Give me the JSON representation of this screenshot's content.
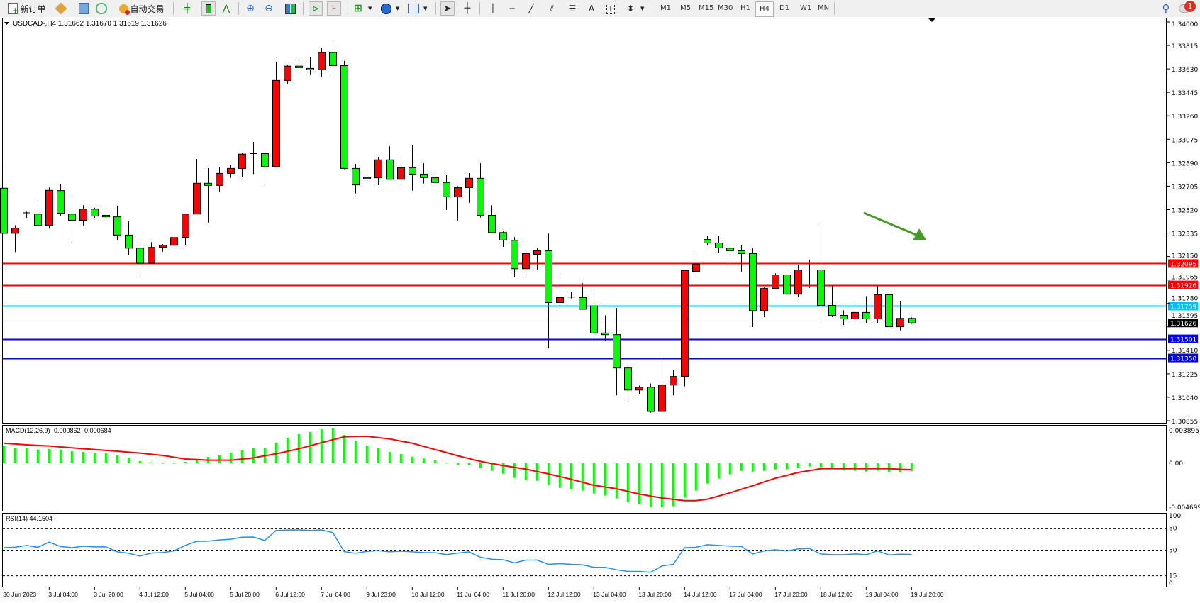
{
  "toolbar": {
    "new_order_label": "新订单",
    "auto_trading_label": "自动交易",
    "icons": [
      "new-order-icon",
      "market-watch-icon",
      "navigator-icon",
      "signals-icon",
      "auto-trading-icon",
      "bar-chart-icon",
      "candlestick-icon",
      "line-chart-icon",
      "zoom-in-icon",
      "zoom-out-icon",
      "tile-windows-icon",
      "auto-scroll-icon",
      "chart-shift-icon",
      "indicators-icon",
      "periodicity-icon",
      "templates-icon",
      "cursor-icon",
      "crosshair-icon",
      "vertical-line-icon",
      "horizontal-line-icon",
      "trendline-icon",
      "equidistant-channel-icon",
      "fibonacci-icon",
      "text-icon",
      "text-label-icon",
      "arrows-icon"
    ],
    "timeframes": [
      "M1",
      "M5",
      "M15",
      "M30",
      "H1",
      "H4",
      "D1",
      "W1",
      "MN"
    ],
    "active_timeframe": "H4",
    "notification_count": "1"
  },
  "chart": {
    "symbol_header": "USDCAD-,H4  1.31662 1.31670 1.31619 1.31626",
    "colors": {
      "bull": "#ff0000",
      "bear": "#00ff00",
      "outline": "#000000",
      "macd_hist": "#00ff00",
      "macd_signal": "#ff0000",
      "rsi": "#1e90ff",
      "arrow": "#4a9a2a"
    }
  },
  "chart_data": [
    {
      "type": "candlestick",
      "title": "USDCAD-,H4",
      "ohlc_header": [
        "1.31662",
        "1.31670",
        "1.31619",
        "1.31626"
      ],
      "ylim": [
        1.30855,
        1.34
      ],
      "y_ticks": [
        "1.34000",
        "1.33815",
        "1.33630",
        "1.33445",
        "1.33260",
        "1.33075",
        "1.32890",
        "1.32705",
        "1.32520",
        "1.32335",
        "1.32150",
        "1.31965",
        "1.31780",
        "1.31595",
        "1.31410",
        "1.31225",
        "1.31040",
        "1.30855"
      ],
      "x_tick_labels": [
        "30 Jun 2023",
        "3 Jul 04:00",
        "3 Jul 20:00",
        "4 Jul 12:00",
        "5 Jul 04:00",
        "5 Jul 20:00",
        "6 Jul 12:00",
        "7 Jul 04:00",
        "9 Jul 23:00",
        "10 Jul 12:00",
        "11 Jul 04:00",
        "11 Jul 20:00",
        "12 Jul 12:00",
        "13 Jul 04:00",
        "13 Jul 20:00",
        "14 Jul 12:00",
        "17 Jul 04:00",
        "17 Jul 20:00",
        "18 Jul 12:00",
        "19 Jul 04:00",
        "19 Jul 20:00"
      ],
      "x_tick_every_bars": 4,
      "horizontal_lines": [
        {
          "price": 1.32095,
          "label": "1.32095",
          "color": "#ff0000"
        },
        {
          "price": 1.31926,
          "label": "1.31926",
          "color": "#ff0000"
        },
        {
          "price": 1.31759,
          "label": "1.31759",
          "color": "#00bfff"
        },
        {
          "price": 1.31626,
          "label": "1.31626",
          "color": "#000000"
        },
        {
          "price": 1.31501,
          "label": "1.31501",
          "color": "#0000ff"
        },
        {
          "price": 1.3135,
          "label": "1.31350",
          "color": "#0000ff"
        }
      ],
      "candles_ohlc": [
        [
          1.32689,
          1.32832,
          1.32052,
          1.32333
        ],
        [
          1.32333,
          1.32397,
          1.32185,
          1.32374
        ],
        [
          1.32493,
          1.32504,
          1.32452,
          1.32495
        ],
        [
          1.32485,
          1.32567,
          1.32385,
          1.32395
        ],
        [
          1.32395,
          1.32695,
          1.3237,
          1.32672
        ],
        [
          1.3267,
          1.32724,
          1.32473,
          1.32491
        ],
        [
          1.32485,
          1.32617,
          1.32288,
          1.32436
        ],
        [
          1.32436,
          1.32555,
          1.32395,
          1.32524
        ],
        [
          1.32524,
          1.32535,
          1.3245,
          1.32469
        ],
        [
          1.32475,
          1.32561,
          1.32428,
          1.32463
        ],
        [
          1.32463,
          1.32549,
          1.32278,
          1.32319
        ],
        [
          1.32319,
          1.32426,
          1.32159,
          1.32216
        ],
        [
          1.32216,
          1.32253,
          1.32019,
          1.32097
        ],
        [
          1.32097,
          1.32264,
          1.32095,
          1.32222
        ],
        [
          1.32222,
          1.32249,
          1.32188,
          1.32239
        ],
        [
          1.32239,
          1.32337,
          1.32188,
          1.323
        ],
        [
          1.323,
          1.32485,
          1.32243,
          1.32485
        ],
        [
          1.32485,
          1.32919,
          1.32485,
          1.32728
        ],
        [
          1.32728,
          1.32847,
          1.32418,
          1.32711
        ],
        [
          1.32711,
          1.32853,
          1.32662,
          1.32806
        ],
        [
          1.32806,
          1.32869,
          1.32771,
          1.32845
        ],
        [
          1.32845,
          1.32966,
          1.32781,
          1.32958
        ],
        [
          1.32962,
          1.33054,
          1.32802,
          1.32962
        ],
        [
          1.32962,
          1.33009,
          1.32736,
          1.32859
        ],
        [
          1.32859,
          1.33687,
          1.32853,
          1.33539
        ],
        [
          1.33539,
          1.33658,
          1.3351,
          1.33652
        ],
        [
          1.33652,
          1.3371,
          1.33594,
          1.3364
        ],
        [
          1.33634,
          1.3372,
          1.33582,
          1.33623
        ],
        [
          1.33623,
          1.33798,
          1.33566,
          1.33759
        ],
        [
          1.33759,
          1.33859,
          1.33566,
          1.33656
        ],
        [
          1.33656,
          1.33693,
          1.32839,
          1.32845
        ],
        [
          1.32845,
          1.3288,
          1.32648,
          1.32715
        ],
        [
          1.32761,
          1.32791,
          1.32748,
          1.32771
        ],
        [
          1.32771,
          1.32937,
          1.32713,
          1.32913
        ],
        [
          1.32913,
          1.33019,
          1.32759,
          1.32759
        ],
        [
          1.32759,
          1.32964,
          1.32726,
          1.32851
        ],
        [
          1.32851,
          1.33032,
          1.3267,
          1.328
        ],
        [
          1.328,
          1.32886,
          1.32726,
          1.32773
        ],
        [
          1.32771,
          1.32802,
          1.32726,
          1.32734
        ],
        [
          1.32734,
          1.32791,
          1.32518,
          1.32621
        ],
        [
          1.32621,
          1.32705,
          1.32434,
          1.32693
        ],
        [
          1.32693,
          1.32808,
          1.32574,
          1.32767
        ],
        [
          1.32767,
          1.32886,
          1.32457,
          1.32475
        ],
        [
          1.32475,
          1.32555,
          1.32339,
          1.32339
        ],
        [
          1.32339,
          1.32348,
          1.32227,
          1.3228
        ],
        [
          1.32278,
          1.32303,
          1.31986,
          1.32054
        ],
        [
          1.32054,
          1.3227,
          1.32019,
          1.32173
        ],
        [
          1.32167,
          1.32214,
          1.32048,
          1.32196
        ],
        [
          1.32196,
          1.32331,
          1.31425,
          1.31787
        ],
        [
          1.31787,
          1.31984,
          1.31723,
          1.31826
        ],
        [
          1.3183,
          1.31867,
          1.3182,
          1.3183
        ],
        [
          1.31826,
          1.31939,
          1.31734,
          1.31734
        ],
        [
          1.3176,
          1.31849,
          1.31508,
          1.31547
        ],
        [
          1.31547,
          1.31686,
          1.31487,
          1.31534
        ],
        [
          1.31534,
          1.31744,
          1.31056,
          1.31271
        ],
        [
          1.31271,
          1.31296,
          1.31023,
          1.31097
        ],
        [
          1.31097,
          1.31132,
          1.31062,
          1.31119
        ],
        [
          1.31119,
          1.31148,
          1.30918,
          1.30928
        ],
        [
          1.30928,
          1.31378,
          1.30928,
          1.31136
        ],
        [
          1.31136,
          1.31255,
          1.31056,
          1.31204
        ],
        [
          1.31204,
          1.32046,
          1.31126,
          1.3204
        ],
        [
          1.32033,
          1.32198,
          1.31986,
          1.32091
        ],
        [
          1.32284,
          1.32315,
          1.32239,
          1.32257
        ],
        [
          1.32257,
          1.32315,
          1.32181,
          1.32218
        ],
        [
          1.32216,
          1.32241,
          1.32101,
          1.32196
        ],
        [
          1.32196,
          1.32237,
          1.32031,
          1.32173
        ],
        [
          1.32173,
          1.32214,
          1.31594,
          1.31723
        ],
        [
          1.31723,
          1.31906,
          1.31672,
          1.31898
        ],
        [
          1.31898,
          1.32017,
          1.31892,
          1.32005
        ],
        [
          1.32005,
          1.32033,
          1.31847,
          1.31853
        ],
        [
          1.31853,
          1.32085,
          1.3183,
          1.32044
        ],
        [
          1.32044,
          1.32124,
          1.31902,
          1.32044
        ],
        [
          1.32044,
          1.32422,
          1.31662,
          1.31764
        ],
        [
          1.31764,
          1.31927,
          1.31672,
          1.31686
        ],
        [
          1.31686,
          1.31725,
          1.3161,
          1.31658
        ],
        [
          1.31658,
          1.31787,
          1.31641,
          1.31709
        ],
        [
          1.31709,
          1.31838,
          1.31621,
          1.31658
        ],
        [
          1.31658,
          1.31927,
          1.31627,
          1.31849
        ],
        [
          1.31849,
          1.319,
          1.31547,
          1.31596
        ],
        [
          1.31596,
          1.31801,
          1.31567,
          1.31662
        ],
        [
          1.31662,
          1.3167,
          1.31619,
          1.31626
        ]
      ]
    },
    {
      "type": "bar+line",
      "title": "MACD(12,26,9) -0.000862 -0.000684",
      "ylim": [
        -0.004699,
        0.003895
      ],
      "y_ticks": [
        "0.003895",
        "0.00",
        "-0.004699"
      ],
      "histogram": [
        0.0019,
        0.00167,
        0.0016,
        0.00147,
        0.00152,
        0.00147,
        0.00129,
        0.00122,
        0.00114,
        0.00109,
        0.00086,
        0.00061,
        0.00023,
        0.0001,
        3e-05,
        3e-05,
        0.00015,
        0.00043,
        0.00068,
        0.00091,
        0.00114,
        0.00137,
        0.0016,
        0.00162,
        0.00223,
        0.00274,
        0.00312,
        0.00335,
        0.00365,
        0.00373,
        0.00304,
        0.00236,
        0.0019,
        0.0016,
        0.00122,
        0.00099,
        0.00071,
        0.00051,
        0.0003,
        5e-05,
        -0.00018,
        -0.0002,
        -0.00051,
        -0.00081,
        -0.00112,
        -0.00157,
        -0.0018,
        -0.00188,
        -0.00233,
        -0.00264,
        -0.00279,
        -0.00294,
        -0.00324,
        -0.00347,
        -0.00378,
        -0.00416,
        -0.00439,
        -0.00469,
        -0.00469,
        -0.00461,
        -0.0037,
        -0.00294,
        -0.00218,
        -0.00165,
        -0.00119,
        -0.00081,
        -0.00089,
        -0.00081,
        -0.00066,
        -0.00066,
        -0.00051,
        -0.00035,
        -0.00043,
        -0.00051,
        -0.00074,
        -0.00081,
        -0.00089,
        -0.00081,
        -0.00096,
        -0.00096,
        -0.000862
      ],
      "signal": [
        0.00215,
        0.00206,
        0.00198,
        0.00191,
        0.00185,
        0.00175,
        0.00165,
        0.00156,
        0.00147,
        0.00138,
        0.00129,
        0.00119,
        0.00109,
        0.00096,
        0.00084,
        0.00065,
        0.00046,
        0.0004,
        0.00033,
        0.00033,
        0.00033,
        0.00045,
        0.00058,
        0.0008,
        0.00101,
        0.00128,
        0.00155,
        0.00188,
        0.00221,
        0.00252,
        0.00284,
        0.00287,
        0.00289,
        0.00275,
        0.00261,
        0.00238,
        0.00215,
        0.00181,
        0.00147,
        0.00115,
        0.0008,
        0.0005,
        0.0002,
        -3e-05,
        -0.00025,
        -0.00044,
        -0.00063,
        -0.00089,
        -0.00114,
        -0.00143,
        -0.00172,
        -0.00204,
        -0.00236,
        -0.00255,
        -0.00274,
        -0.00302,
        -0.0033,
        -0.00352,
        -0.00373,
        -0.00387,
        -0.00401,
        -0.00401,
        -0.00385,
        -0.00351,
        -0.00317,
        -0.00279,
        -0.00241,
        -0.002,
        -0.0016,
        -0.0013,
        -0.00099,
        -0.00079,
        -0.00058,
        -0.00058,
        -0.00058,
        -0.00058,
        -0.00058,
        -0.00058,
        -0.00058,
        -0.00065,
        -0.000684
      ]
    },
    {
      "type": "line",
      "title": "RSI(14) 44.1504",
      "ylim": [
        0,
        100
      ],
      "y_ticks": [
        "100",
        "80",
        "50",
        "15",
        "0"
      ],
      "levels": [
        80,
        50,
        15
      ],
      "values": [
        53.5,
        54,
        56.5,
        54,
        61,
        55,
        53.5,
        55.5,
        54.5,
        54.5,
        47.7,
        45.8,
        42,
        46,
        46.8,
        49,
        56.5,
        62,
        62.3,
        64,
        65,
        67.7,
        68,
        63.2,
        77,
        77.4,
        77.7,
        77,
        77.7,
        74,
        48,
        45.8,
        48.4,
        49.4,
        47.7,
        48.7,
        47.7,
        46.8,
        46.5,
        44,
        46,
        47.7,
        40.3,
        37.7,
        37,
        32.6,
        36.5,
        36.5,
        30.6,
        31.6,
        30.6,
        30,
        26.5,
        26.5,
        23.2,
        21,
        21,
        19.7,
        28.4,
        30.6,
        53.5,
        53.9,
        57.4,
        56.5,
        55.5,
        55.2,
        44.8,
        49,
        50.6,
        49,
        51.6,
        52.3,
        44.8,
        43.9,
        43.9,
        44.8,
        43.9,
        49,
        43.5,
        44.5,
        44.15
      ]
    }
  ]
}
